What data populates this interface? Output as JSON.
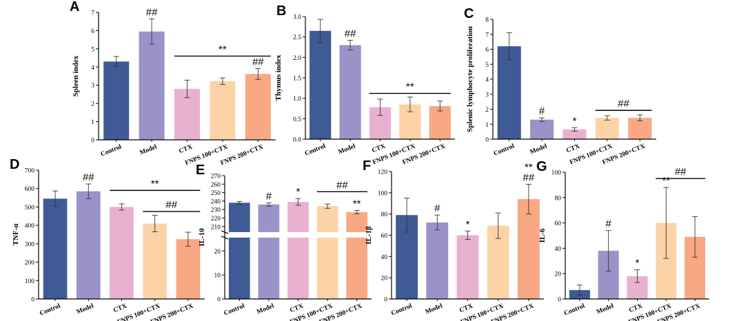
{
  "chart_data": [
    {
      "type": "bar",
      "panel": "A",
      "ylabel": "Spleen index",
      "categories": [
        "Control",
        "Model",
        "CTX",
        "FNPS 100+CTX",
        "FNPS 200+CTX"
      ],
      "values": [
        4.3,
        5.95,
        2.8,
        3.22,
        3.62
      ],
      "errors": [
        0.28,
        0.7,
        0.48,
        0.18,
        0.3
      ],
      "colors": [
        "#3f5a94",
        "#9a93c8",
        "#e8b1cf",
        "#fcd3a6",
        "#f8a882"
      ],
      "ylim": [
        0,
        7
      ],
      "yticks": [
        0,
        1,
        2,
        3,
        4,
        5,
        6,
        7
      ],
      "annotations": [
        {
          "text": "##",
          "bar": 1
        },
        {
          "text": "##",
          "bar": 4
        }
      ],
      "brackets": [
        {
          "from": 2,
          "to": 4,
          "y": 4.6,
          "text": "**"
        }
      ]
    },
    {
      "type": "bar",
      "panel": "B",
      "ylabel": "Thymus index",
      "categories": [
        "Control",
        "Model",
        "CTX",
        "FNPS 100+CTX",
        "FNPS 200+CTX"
      ],
      "values": [
        2.65,
        2.3,
        0.78,
        0.85,
        0.81
      ],
      "errors": [
        0.28,
        0.12,
        0.2,
        0.18,
        0.12
      ],
      "colors": [
        "#3f5a94",
        "#9a93c8",
        "#e8b1cf",
        "#fcd3a6",
        "#f8a882"
      ],
      "ylim": [
        0,
        3.0
      ],
      "yticks": [
        0.0,
        0.5,
        1.0,
        1.5,
        2.0,
        2.5,
        3.0
      ],
      "ydec": 1,
      "annotations": [
        {
          "text": "##",
          "bar": 1
        }
      ],
      "brackets": [
        {
          "from": 2,
          "to": 4,
          "y": 1.12,
          "text": "**"
        }
      ]
    },
    {
      "type": "bar",
      "panel": "C",
      "ylabel": "Splenic lymphocyte proliferation",
      "categories": [
        "Control",
        "Model",
        "CTX",
        "FNPS 100+CTX",
        "FNPS 200+CTX"
      ],
      "values": [
        6.2,
        1.3,
        0.65,
        1.42,
        1.42
      ],
      "errors": [
        0.9,
        0.12,
        0.12,
        0.15,
        0.2
      ],
      "colors": [
        "#3f5a94",
        "#9a93c8",
        "#e8b1cf",
        "#fcd3a6",
        "#f8a882"
      ],
      "ylim": [
        0,
        8
      ],
      "yticks": [
        0,
        1,
        2,
        3,
        4,
        5,
        6,
        7,
        8
      ],
      "annotations": [
        {
          "text": "#",
          "bar": 1
        },
        {
          "text": "*",
          "bar": 2
        }
      ],
      "brackets": [
        {
          "from": 3,
          "to": 4,
          "y": 1.92,
          "text": "##"
        }
      ]
    },
    {
      "type": "bar",
      "panel": "D",
      "ylabel": "TNF-α",
      "categories": [
        "Control",
        "Model",
        "CTX",
        "FNPS 100+CTX",
        "FNPS 200+CTX"
      ],
      "values": [
        545,
        585,
        500,
        410,
        325
      ],
      "errors": [
        42,
        40,
        17,
        45,
        38
      ],
      "colors": [
        "#3f5a94",
        "#9a93c8",
        "#e8b1cf",
        "#fcd3a6",
        "#f8a882"
      ],
      "ylim": [
        0,
        700
      ],
      "yticks": [
        0,
        100,
        200,
        300,
        400,
        500,
        600,
        700
      ],
      "annotations": [
        {
          "text": "##",
          "bar": 1
        }
      ],
      "brackets": [
        {
          "from": 2,
          "to": 4,
          "y": 590,
          "text": "**"
        },
        {
          "from": 3,
          "to": 4,
          "y": 475,
          "text": "##"
        }
      ]
    },
    {
      "type": "bar",
      "panel": "E",
      "ylabel": "IL-10",
      "categories": [
        "Control",
        "Model",
        "CTX",
        "FNPS 100+CTX",
        "FNPS 200+CTX"
      ],
      "values": [
        238,
        236,
        239,
        234,
        227
      ],
      "errors": [
        1.5,
        2,
        4,
        2.5,
        2
      ],
      "colors": [
        "#3f5a94",
        "#9a93c8",
        "#e8b1cf",
        "#fcd3a6",
        "#f8a882"
      ],
      "broken_axis": {
        "lower": [
          0,
          25
        ],
        "upper": [
          205,
          270
        ]
      },
      "yticks_lower": [
        0,
        10,
        20
      ],
      "yticks_upper": [
        210,
        220,
        230,
        240,
        250,
        260,
        270
      ],
      "annotations": [
        {
          "text": "#",
          "bar": 1
        },
        {
          "text": "*",
          "bar": 2
        },
        {
          "text": "**",
          "bar": 4
        }
      ],
      "brackets": [
        {
          "from": 3,
          "to": 4,
          "y": 251,
          "text": "##"
        }
      ]
    },
    {
      "type": "bar",
      "panel": "F",
      "ylabel": "IL-1β",
      "categories": [
        "Control",
        "Model",
        "CTX",
        "FNPS 100+CTX",
        "FNPS 200+CTX"
      ],
      "values": [
        79,
        72,
        60,
        69,
        94
      ],
      "errors": [
        16,
        7,
        4,
        12,
        14
      ],
      "colors": [
        "#3f5a94",
        "#9a93c8",
        "#e8b1cf",
        "#fcd3a6",
        "#f8a882"
      ],
      "ylim": [
        0,
        120
      ],
      "yticks": [
        0,
        20,
        40,
        60,
        80,
        100,
        120
      ],
      "annotations": [
        {
          "text": "#",
          "bar": 1
        },
        {
          "text": "*",
          "bar": 2
        },
        {
          "text": "**",
          "bar": 4,
          "row": 2
        },
        {
          "text": "##",
          "bar": 4,
          "row": 1
        }
      ],
      "brackets": []
    },
    {
      "type": "bar",
      "panel": "G",
      "ylabel": "IL-6",
      "categories": [
        "Control",
        "Model",
        "CTX",
        "FNPS 100+CTX",
        "FNPS 200+CTX"
      ],
      "values": [
        7,
        38,
        18,
        60,
        49
      ],
      "errors": [
        4,
        16,
        5,
        28,
        16
      ],
      "colors": [
        "#3f5a94",
        "#9a93c8",
        "#e8b1cf",
        "#fcd3a6",
        "#f8a882"
      ],
      "ylim": [
        0,
        100
      ],
      "yticks": [
        0,
        20,
        40,
        60,
        80,
        100
      ],
      "annotations": [
        {
          "text": "#",
          "bar": 1
        },
        {
          "text": "*",
          "bar": 2
        },
        {
          "text": "**",
          "bar": 3
        }
      ],
      "brackets": [
        {
          "from": 3,
          "to": 4,
          "y": 95,
          "text": "##"
        }
      ]
    }
  ]
}
